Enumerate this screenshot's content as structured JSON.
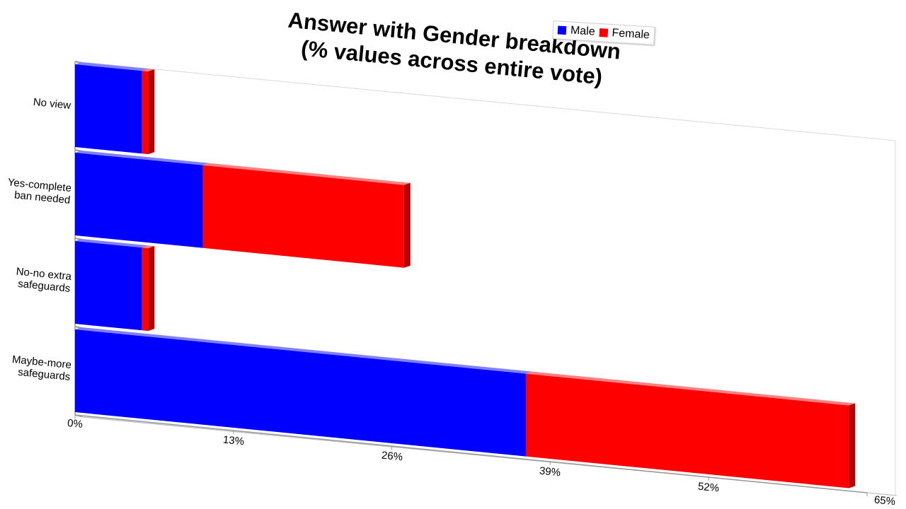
{
  "chart_data": {
    "type": "bar",
    "orientation": "horizontal",
    "stacked": true,
    "title": [
      "Answer with Gender breakdown",
      "(% values across entire vote)"
    ],
    "categories": [
      "No view",
      "Yes-complete ban needed",
      "No-no extra safeguards",
      "Maybe-more safeguards"
    ],
    "category_lines": [
      [
        "No view"
      ],
      [
        "Yes-complete",
        "ban needed"
      ],
      [
        "No-no extra",
        "safeguards"
      ],
      [
        "Maybe-more",
        "safeguards"
      ]
    ],
    "series": [
      {
        "name": "Male",
        "values": [
          5.5,
          10.5,
          5.5,
          37
        ],
        "color": "#0000ff"
      },
      {
        "name": "Female",
        "values": [
          0.5,
          16.5,
          0.5,
          26.5
        ],
        "color": "#ff0000"
      }
    ],
    "x_ticks": [
      0,
      13,
      26,
      39,
      52,
      65
    ],
    "x_tick_labels": [
      "0%",
      "13%",
      "26%",
      "39%",
      "52%",
      "65%"
    ],
    "xlim": [
      0,
      65
    ],
    "legend_position": "top-right",
    "grid": false
  }
}
